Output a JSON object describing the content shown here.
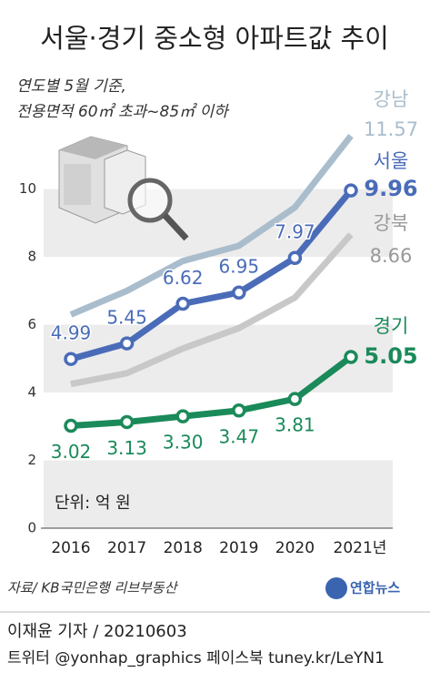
{
  "chart_data": {
    "type": "line",
    "title": "서울·경기 중소형 아파트값 추이",
    "subtitle": [
      "연도별 5월 기준,",
      "전용면적 60㎡ 초과~85㎡ 이하"
    ],
    "unit": "단위: 억 원",
    "source": "자료/ KB국민은행 리브부동산",
    "logo": "연합뉴스",
    "byline": "이재윤 기자 / 20210603",
    "social": "트위터 @yonhap_graphics  페이스북 tuney.kr/LeYN1",
    "categories": [
      "2016",
      "2017",
      "2018",
      "2019",
      "2020",
      "2021년"
    ],
    "ylim": [
      0,
      12.3
    ],
    "yticks": [
      0,
      2,
      4,
      6,
      8,
      10
    ],
    "grid": "bands",
    "series": [
      {
        "name": "강남",
        "color": "#a9bdcc",
        "values": [
          6.3,
          7.0,
          7.88,
          8.33,
          9.46,
          11.57
        ],
        "value_labels": [
          null,
          null,
          null,
          null,
          null,
          "11.57"
        ]
      },
      {
        "name": "서울",
        "color": "#4a6cb8",
        "values": [
          4.99,
          5.45,
          6.62,
          6.95,
          7.97,
          9.96
        ],
        "value_labels": [
          "4.99",
          "5.45",
          "6.62",
          "6.95",
          "7.97",
          "9.96"
        ]
      },
      {
        "name": "강북",
        "color": "#c8c8c8",
        "values": [
          4.25,
          4.57,
          5.3,
          5.9,
          6.8,
          8.66
        ],
        "value_labels": [
          null,
          null,
          null,
          null,
          null,
          "8.66"
        ]
      },
      {
        "name": "경기",
        "color": "#1b8a5a",
        "values": [
          3.02,
          3.13,
          3.3,
          3.47,
          3.81,
          5.05
        ],
        "value_labels": [
          "3.02",
          "3.13",
          "3.30",
          "3.47",
          "3.81",
          "5.05"
        ]
      }
    ]
  }
}
